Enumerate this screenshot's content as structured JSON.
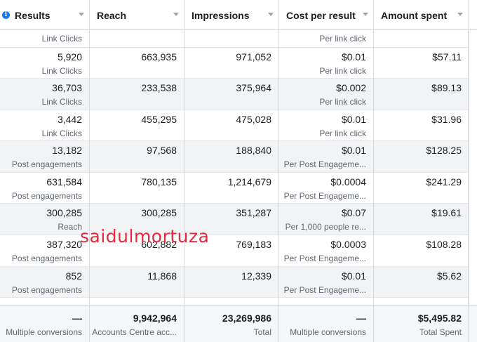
{
  "columns": [
    {
      "label": "Results"
    },
    {
      "label": "Reach"
    },
    {
      "label": "Impressions"
    },
    {
      "label": "Cost per result"
    },
    {
      "label": "Amount spent"
    }
  ],
  "top_partial_row": {
    "results_sub": "Link Clicks",
    "cost_sub": "Per link click"
  },
  "rows": [
    {
      "results": "5,920",
      "results_sub": "Link Clicks",
      "reach": "663,935",
      "impressions": "971,052",
      "cost": "$0.01",
      "cost_sub": "Per link click",
      "spent": "$57.11"
    },
    {
      "results": "36,703",
      "results_sub": "Link Clicks",
      "reach": "233,538",
      "impressions": "375,964",
      "cost": "$0.002",
      "cost_sub": "Per link click",
      "spent": "$89.13"
    },
    {
      "results": "3,442",
      "results_sub": "Link Clicks",
      "reach": "455,295",
      "impressions": "475,028",
      "cost": "$0.01",
      "cost_sub": "Per link click",
      "spent": "$31.96"
    },
    {
      "results": "13,182",
      "results_sub": "Post engagements",
      "reach": "97,568",
      "impressions": "188,840",
      "cost": "$0.01",
      "cost_sub": "Per Post Engageme...",
      "spent": "$128.25"
    },
    {
      "results": "631,584",
      "results_sub": "Post engagements",
      "reach": "780,135",
      "impressions": "1,214,679",
      "cost": "$0.0004",
      "cost_sub": "Per Post Engageme...",
      "spent": "$241.29"
    },
    {
      "results": "300,285",
      "results_sub": "Reach",
      "reach": "300,285",
      "impressions": "351,287",
      "cost": "$0.07",
      "cost_sub": "Per 1,000 people re...",
      "spent": "$19.61"
    },
    {
      "results": "387,320",
      "results_sub": "Post engagements",
      "reach": "602,882",
      "impressions": "769,183",
      "cost": "$0.0003",
      "cost_sub": "Per Post Engageme...",
      "spent": "$108.28"
    },
    {
      "results": "852",
      "results_sub": "Post engagements",
      "reach": "11,868",
      "impressions": "12,339",
      "cost": "$0.01",
      "cost_sub": "Per Post Engageme...",
      "spent": "$5.62"
    }
  ],
  "footer": {
    "results": "—",
    "results_sub": "Multiple conversions",
    "reach": "9,942,964",
    "reach_sub": "Accounts Centre acc...",
    "impressions": "23,269,986",
    "impressions_sub": "Total",
    "cost": "—",
    "cost_sub": "Multiple conversions",
    "spent": "$5,495.82",
    "spent_sub": "Total Spent"
  },
  "watermark": "saidulmortuza",
  "colors": {
    "info_icon": "#1877f2",
    "watermark": "#e8283b",
    "alt_row": "#f2f3f5"
  }
}
